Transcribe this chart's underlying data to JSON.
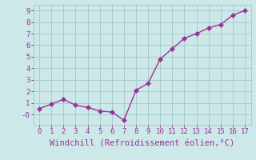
{
  "x": [
    0,
    1,
    2,
    3,
    4,
    5,
    6,
    7,
    8,
    9,
    10,
    11,
    12,
    13,
    14,
    15,
    16,
    17
  ],
  "y": [
    0.5,
    0.9,
    1.3,
    0.8,
    0.6,
    0.3,
    0.2,
    -0.5,
    2.1,
    2.7,
    4.8,
    5.7,
    6.6,
    7.0,
    7.5,
    7.8,
    8.6,
    9.0
  ],
  "line_color": "#993399",
  "marker_color": "#993399",
  "bg_color": "#cce8e8",
  "grid_color": "#aacccc",
  "xlabel": "Windchill (Refroidissement éolien,°C)",
  "xlabel_color": "#993399",
  "tick_color": "#993399",
  "ylim": [
    -0.9,
    9.5
  ],
  "xlim": [
    -0.5,
    17.5
  ],
  "yticks": [
    0,
    1,
    2,
    3,
    4,
    5,
    6,
    7,
    8,
    9
  ],
  "ytick_labels": [
    "-0",
    "1",
    "2",
    "3",
    "4",
    "5",
    "6",
    "7",
    "8",
    "9"
  ],
  "xticks": [
    0,
    1,
    2,
    3,
    4,
    5,
    6,
    7,
    8,
    9,
    10,
    11,
    12,
    13,
    14,
    15,
    16,
    17
  ],
  "marker_size": 3,
  "line_width": 1.0,
  "xlabel_fontsize": 7.5,
  "tick_fontsize": 6.5
}
